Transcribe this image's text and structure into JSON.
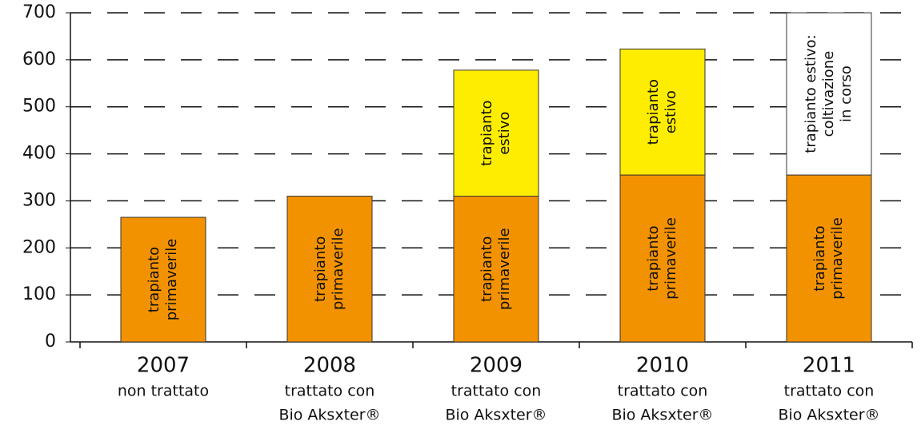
{
  "chart_data": {
    "type": "stacked_bar",
    "categories": [
      "2007",
      "2008",
      "2009",
      "2010",
      "2011"
    ],
    "category_notes": [
      [
        "non trattato"
      ],
      [
        "trattato con",
        "Bio Aksxter®"
      ],
      [
        "trattato con",
        "Bio Aksxter®"
      ],
      [
        "trattato con",
        "Bio Aksxter®"
      ],
      [
        "trattato con",
        "Bio Aksxter®"
      ]
    ],
    "series": [
      {
        "name": [
          "trapianto",
          "primaverile"
        ],
        "color": "#f39200",
        "values": [
          265,
          310,
          310,
          355,
          355
        ]
      },
      {
        "name": [
          "trapianto",
          "estivo"
        ],
        "color": "#ffed00",
        "values": [
          null,
          null,
          268,
          268,
          null
        ]
      },
      {
        "name": [
          "trapianto estivo:",
          "coltivazione",
          "in corso"
        ],
        "color": "#ffffff",
        "values": [
          null,
          null,
          null,
          null,
          345
        ]
      }
    ],
    "ylim": [
      0,
      700
    ],
    "yticks": [
      0,
      100,
      200,
      300,
      400,
      500,
      600,
      700
    ],
    "grid": true
  }
}
